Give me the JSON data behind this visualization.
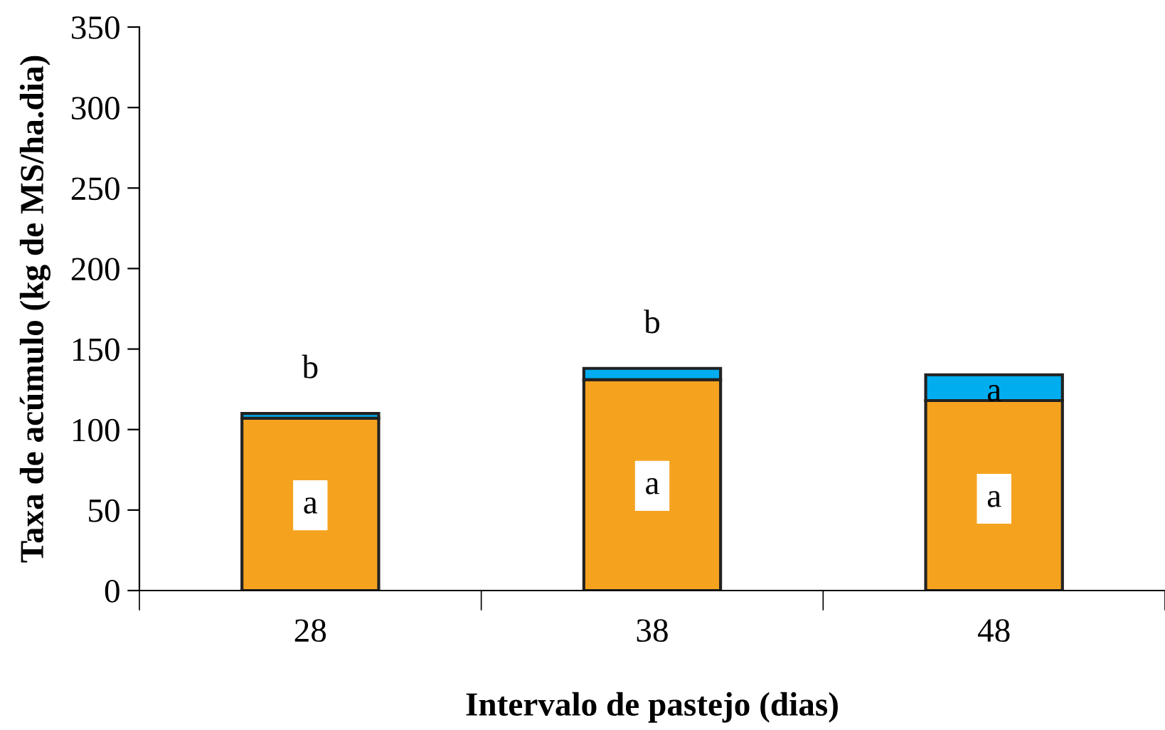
{
  "chart_data": {
    "type": "bar",
    "stacked": true,
    "xlabel": "Intervalo de pastejo (dias)",
    "ylabel": "Taxa de acúmulo (kg de MS/ha.dia)",
    "categories": [
      "28",
      "38",
      "48"
    ],
    "series": [
      {
        "color": "#f5a31f",
        "values": [
          107,
          131,
          118
        ]
      },
      {
        "color": "#00aeef",
        "values": [
          3,
          7,
          16
        ]
      }
    ],
    "ylim": [
      0,
      350
    ],
    "yticks": [
      0,
      50,
      100,
      150,
      200,
      250,
      300,
      350
    ],
    "grid": false,
    "annotations": [
      {
        "text": "b",
        "x": "28",
        "y": 110
      },
      {
        "text": "a",
        "x": "28",
        "y": 53
      },
      {
        "text": "b",
        "x": "38",
        "y": 138
      },
      {
        "text": "a",
        "x": "38",
        "y": 65
      },
      {
        "text": "a",
        "x": "48",
        "y": 134
      },
      {
        "text": "a",
        "x": "48",
        "y": 57
      }
    ]
  }
}
